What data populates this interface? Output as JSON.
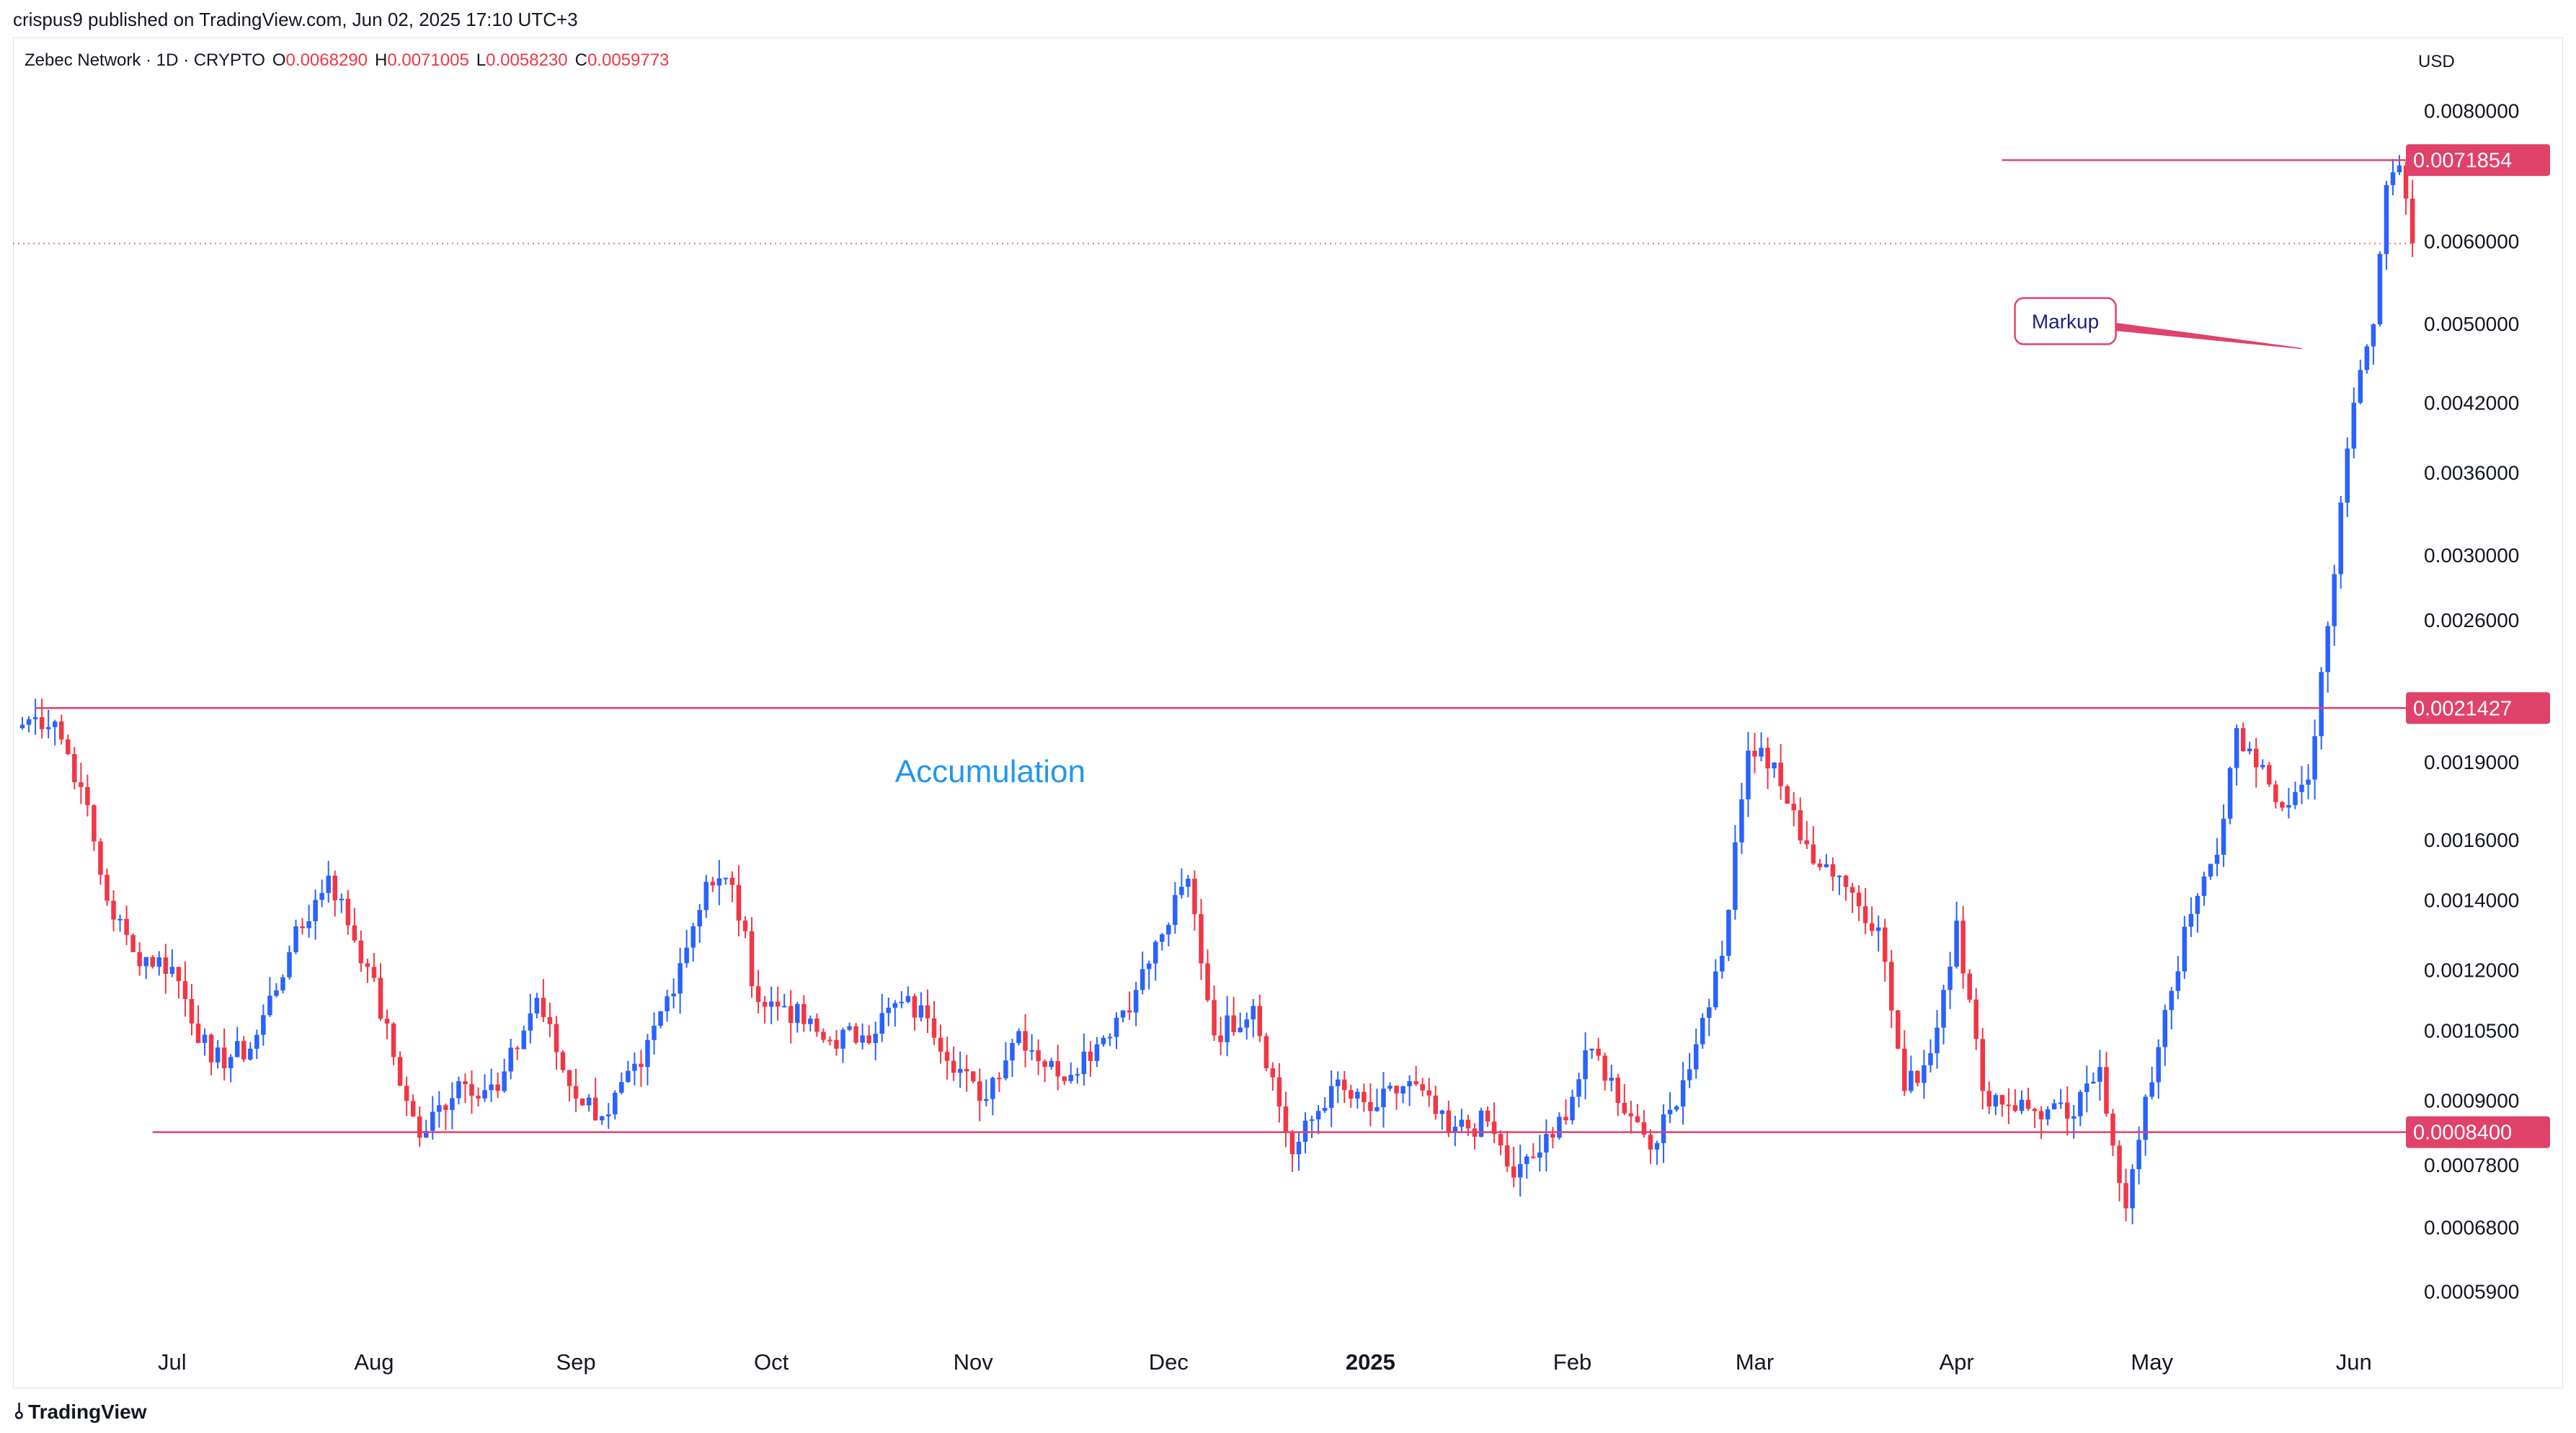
{
  "header": "crispus9 published on TradingView.com, Jun 02, 2025 17:10 UTC+3",
  "symbol": {
    "name": "Zebec Network · 1D · CRYPTO",
    "open_label": "O",
    "open": "0.0068290",
    "high_label": "H",
    "high": "0.0071005",
    "low_label": "L",
    "low": "0.0058230",
    "close_label": "C",
    "close": "0.0059773"
  },
  "currency": "USD",
  "footer_brand": "TradingView",
  "colors": {
    "up": "#2962ff",
    "down": "#f23645",
    "line": "#e0426a",
    "accumulation": "#2196f3"
  },
  "chart_data": {
    "type": "candlestick",
    "y_scale": "log",
    "ylim": [
      0.00053,
      0.0093
    ],
    "y_ticks": [
      "0.0080000",
      "0.0060000",
      "0.0050000",
      "0.0042000",
      "0.0036000",
      "0.0030000",
      "0.0026000",
      "0.0019000",
      "0.0016000",
      "0.0014000",
      "0.0012000",
      "0.0010500",
      "0.0009000",
      "0.0007800",
      "0.0006800",
      "0.0005900"
    ],
    "x_ticks": [
      {
        "label": "Jul",
        "day": 24
      },
      {
        "label": "Aug",
        "day": 55
      },
      {
        "label": "Sep",
        "day": 86
      },
      {
        "label": "Oct",
        "day": 116
      },
      {
        "label": "Nov",
        "day": 147
      },
      {
        "label": "Dec",
        "day": 177
      },
      {
        "label": "2025",
        "day": 208,
        "bold": true
      },
      {
        "label": "Feb",
        "day": 239
      },
      {
        "label": "Mar",
        "day": 267
      },
      {
        "label": "Apr",
        "day": 298
      },
      {
        "label": "May",
        "day": 328
      },
      {
        "label": "Jun",
        "day": 359
      }
    ],
    "days_total": 365,
    "horizontal_lines": [
      {
        "price": 0.0071854,
        "label": "0.0071854",
        "from_day": 305
      },
      {
        "price": 0.0021427,
        "label": "0.0021427",
        "from_day": 3
      },
      {
        "price": 0.00084,
        "label": "0.0008400",
        "from_day": 21
      }
    ],
    "last_price_line": 0.0059773,
    "annotations": {
      "accumulation": {
        "text": "Accumulation",
        "day": 135,
        "price": 0.00182
      },
      "markup": {
        "text": "Markup",
        "arrow_day": 351,
        "arrow_price": 0.00474
      }
    },
    "anchors": [
      [
        0,
        0.00205
      ],
      [
        3,
        0.0021
      ],
      [
        6,
        0.00208
      ],
      [
        10,
        0.0018
      ],
      [
        14,
        0.0014
      ],
      [
        18,
        0.00125
      ],
      [
        24,
        0.00121
      ],
      [
        30,
        0.00098
      ],
      [
        36,
        0.00101
      ],
      [
        42,
        0.00125
      ],
      [
        48,
        0.00148
      ],
      [
        54,
        0.00121
      ],
      [
        60,
        0.0009
      ],
      [
        62,
        0.00083
      ],
      [
        68,
        0.00094
      ],
      [
        74,
        0.00092
      ],
      [
        80,
        0.00113
      ],
      [
        85,
        0.00093
      ],
      [
        90,
        0.00087
      ],
      [
        96,
        0.00097
      ],
      [
        102,
        0.00122
      ],
      [
        106,
        0.00146
      ],
      [
        110,
        0.00145
      ],
      [
        114,
        0.00112
      ],
      [
        118,
        0.00111
      ],
      [
        124,
        0.00103
      ],
      [
        130,
        0.00104
      ],
      [
        136,
        0.00112
      ],
      [
        140,
        0.00108
      ],
      [
        148,
        0.0009
      ],
      [
        154,
        0.00105
      ],
      [
        160,
        0.00095
      ],
      [
        166,
        0.00102
      ],
      [
        172,
        0.00115
      ],
      [
        176,
        0.0013
      ],
      [
        180,
        0.00147
      ],
      [
        184,
        0.00104
      ],
      [
        190,
        0.00111
      ],
      [
        196,
        0.0008
      ],
      [
        202,
        0.00093
      ],
      [
        208,
        0.00088
      ],
      [
        214,
        0.00094
      ],
      [
        220,
        0.00084
      ],
      [
        226,
        0.00086
      ],
      [
        230,
        0.00076
      ],
      [
        236,
        0.00083
      ],
      [
        242,
        0.00101
      ],
      [
        248,
        0.00087
      ],
      [
        252,
        0.00082
      ],
      [
        258,
        0.00102
      ],
      [
        262,
        0.00124
      ],
      [
        266,
        0.00195
      ],
      [
        270,
        0.0019
      ],
      [
        274,
        0.0016
      ],
      [
        280,
        0.00148
      ],
      [
        286,
        0.00132
      ],
      [
        290,
        0.00092
      ],
      [
        294,
        0.001
      ],
      [
        298,
        0.00134
      ],
      [
        302,
        0.00092
      ],
      [
        310,
        0.00088
      ],
      [
        316,
        0.00087
      ],
      [
        320,
        0.00097
      ],
      [
        324,
        0.00071
      ],
      [
        330,
        0.0011
      ],
      [
        334,
        0.00136
      ],
      [
        338,
        0.00155
      ],
      [
        341,
        0.00205
      ],
      [
        344,
        0.00188
      ],
      [
        348,
        0.00172
      ],
      [
        352,
        0.00183
      ],
      [
        354,
        0.00232
      ],
      [
        356,
        0.00288
      ],
      [
        358,
        0.0038
      ],
      [
        360,
        0.00452
      ],
      [
        362,
        0.005
      ],
      [
        364,
        0.0068
      ],
      [
        366,
        0.0071
      ],
      [
        367,
        0.0066
      ],
      [
        368,
        0.00598
      ]
    ]
  }
}
